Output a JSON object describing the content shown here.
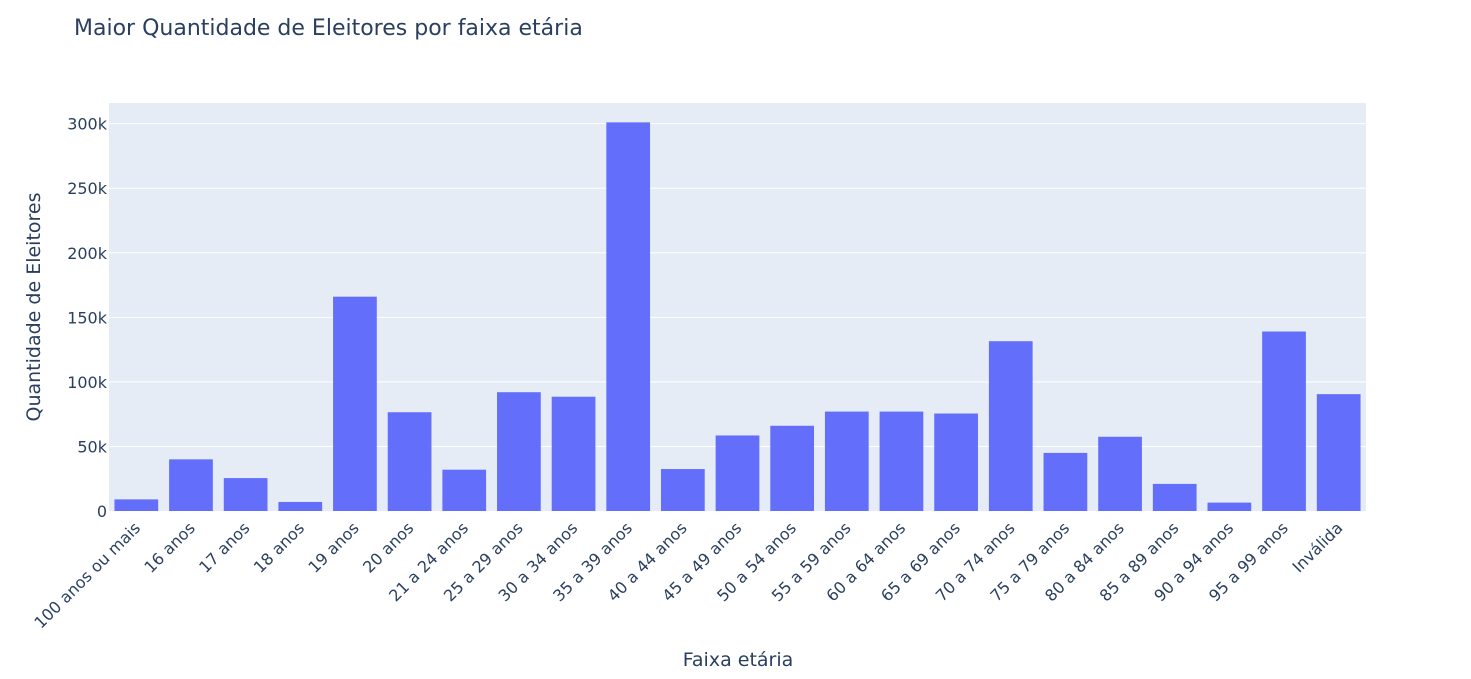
{
  "chart_data": {
    "type": "bar",
    "title": "Maior Quantidade de Eleitores por faixa etária",
    "xlabel": "Faixa etária",
    "ylabel": "Quantidade de Eleitores",
    "categories": [
      "100 anos ou mais",
      "16 anos",
      "17 anos",
      "18 anos",
      "19 anos",
      "20 anos",
      "21 a 24 anos",
      "25 a 29 anos",
      "30 a 34 anos",
      "35 a 39 anos",
      "40 a 44 anos",
      "45 a 49 anos",
      "50 a 54 anos",
      "55 a 59 anos",
      "60 a 64 anos",
      "65 a 69 anos",
      "70 a 74 anos",
      "75 a 79 anos",
      "80 a 84 anos",
      "85 a 89 anos",
      "90 a 94 anos",
      "95 a 99 anos",
      "Inválida"
    ],
    "values": [
      9000,
      40000,
      25500,
      7000,
      166000,
      76500,
      32000,
      92000,
      88500,
      301000,
      32500,
      58500,
      66000,
      77000,
      77000,
      75500,
      131500,
      45000,
      57500,
      21000,
      6500,
      139000,
      90500
    ],
    "ylim": [
      0,
      316000
    ],
    "yticks": [
      0,
      50000,
      100000,
      150000,
      200000,
      250000,
      300000
    ],
    "ytick_labels": [
      "0",
      "50k",
      "100k",
      "150k",
      "200k",
      "250k",
      "300k"
    ],
    "grid": true,
    "colors": {
      "bar": "#636efa",
      "plot_bg": "#e5ecf6",
      "grid": "#ffffff",
      "text": "#2a3f5f"
    }
  }
}
